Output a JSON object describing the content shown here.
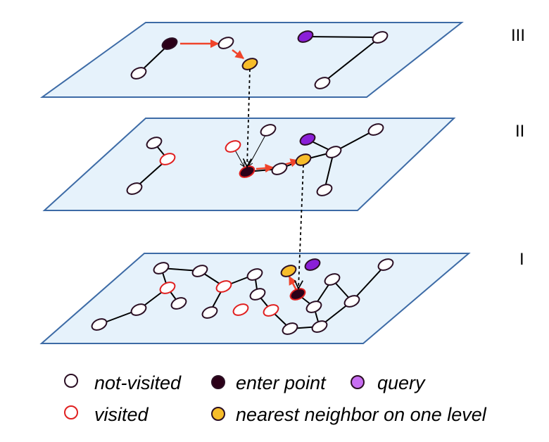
{
  "colors": {
    "plane_fill": "#e6f2fb",
    "plane_stroke": "#3d6ba6",
    "node_stroke": "#2b0f24",
    "visited_stroke": "#e02020",
    "enter_fill": "#2b0018",
    "query_fill": "#8a1fd8",
    "nearest_fill": "#f7bd2a",
    "arrow": "#f0442b"
  },
  "levels": [
    {
      "label": "III"
    },
    {
      "label": "II"
    },
    {
      "label": "I"
    }
  ],
  "legend": {
    "not_visited": "not-visited",
    "enter_point": "enter point",
    "query": "query",
    "visited": "visited",
    "nearest": "nearest neighbor on one level"
  }
}
